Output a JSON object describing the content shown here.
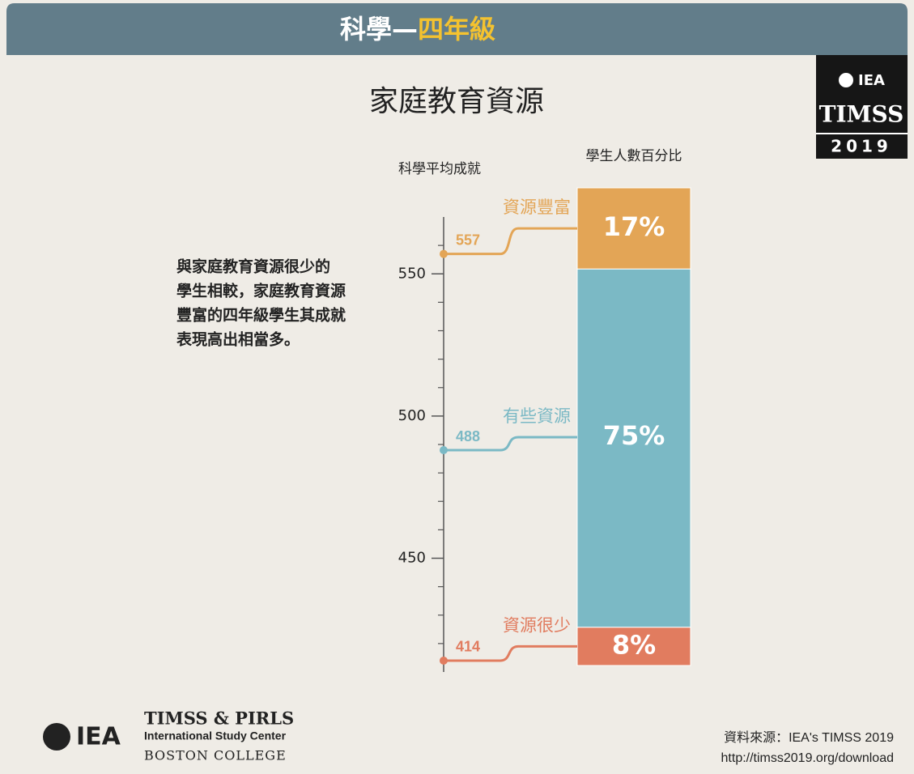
{
  "header": {
    "subject": "科學—",
    "grade": "四年級"
  },
  "logo": {
    "org": "IEA",
    "study": "TIMSS",
    "year": "2019"
  },
  "chart_data": {
    "type": "stacked-score-bar",
    "title": "家庭教育資源",
    "y_axis_label": "科學平均成就",
    "bar_label": "學生人數百分比",
    "annotation": [
      "與家庭教育資源很少的",
      "學生相較，家庭教育資源",
      "豐富的四年級學生其成就",
      "表現高出相當多。"
    ],
    "ylim": [
      410,
      570
    ],
    "yticks": [
      450,
      500,
      550
    ],
    "minor_yticks": [
      420,
      430,
      440,
      460,
      470,
      480,
      490,
      510,
      520,
      530,
      540,
      560
    ],
    "percent_lim": [
      0,
      100
    ],
    "series": [
      {
        "name": "資源豐富",
        "color": "#e3a556",
        "score": 557,
        "percent": 17,
        "percent_label": "17%"
      },
      {
        "name": "有些資源",
        "color": "#7bb9c5",
        "score": 488,
        "percent": 75,
        "percent_label": "75%"
      },
      {
        "name": "資源很少",
        "color": "#e17c5f",
        "score": 414,
        "percent": 8,
        "percent_label": "8%"
      }
    ]
  },
  "footer": {
    "center_name": "TIMSS & PIRLS",
    "center_sub": "International Study Center",
    "college": "BOSTON COLLEGE",
    "org": "IEA",
    "source": "資料來源：IEA's TIMSS 2019",
    "url": "http://timss2019.org/download"
  }
}
